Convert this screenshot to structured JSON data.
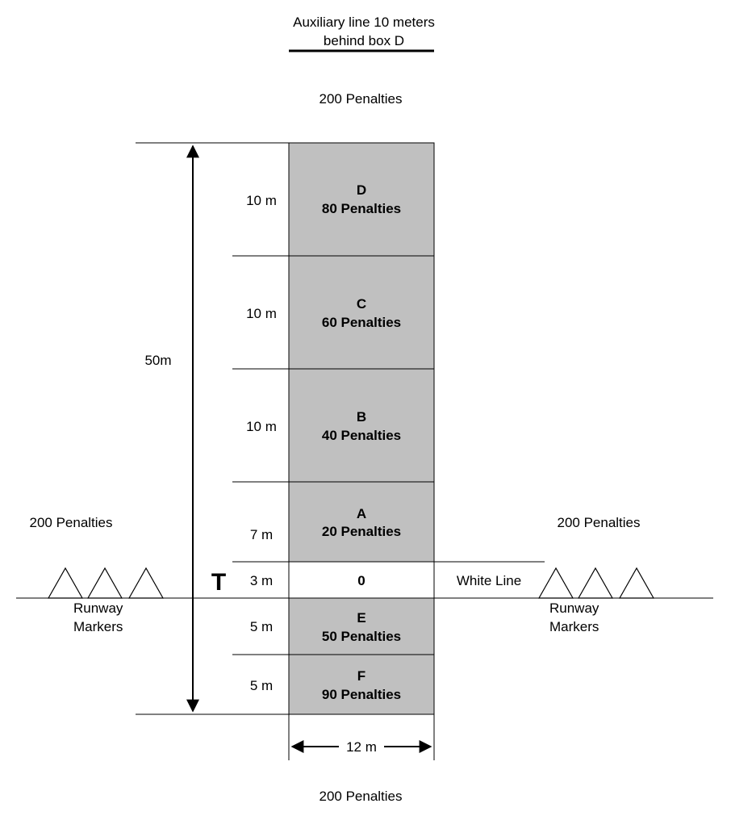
{
  "auxiliary_label": [
    "Auxiliary line 10 meters",
    "behind box D"
  ],
  "penalty_top": "200 Penalties",
  "penalty_bottom": "200 Penalties",
  "penalty_left": "200 Penalties",
  "penalty_right": "200 Penalties",
  "total_length": "50m",
  "width_label": "12 m",
  "t_marker": "T",
  "white_line_label": "White Line",
  "runway_markers_left": [
    "Runway",
    "Markers"
  ],
  "runway_markers_right": [
    "Runway",
    "Markers"
  ],
  "zone_fill": "#c0c0c0",
  "zones": [
    {
      "letter": "D",
      "penalty": "80 Penalties",
      "length": "10 m"
    },
    {
      "letter": "C",
      "penalty": "60 Penalties",
      "length": "10 m"
    },
    {
      "letter": "B",
      "penalty": "40 Penalties",
      "length": "10 m"
    },
    {
      "letter": "A",
      "penalty": "20 Penalties",
      "length": "7 m"
    },
    {
      "letter": "0",
      "penalty": "",
      "length": "3 m"
    },
    {
      "letter": "E",
      "penalty": "50 Penalties",
      "length": "5 m"
    },
    {
      "letter": "F",
      "penalty": "90 Penalties",
      "length": "5 m"
    }
  ]
}
